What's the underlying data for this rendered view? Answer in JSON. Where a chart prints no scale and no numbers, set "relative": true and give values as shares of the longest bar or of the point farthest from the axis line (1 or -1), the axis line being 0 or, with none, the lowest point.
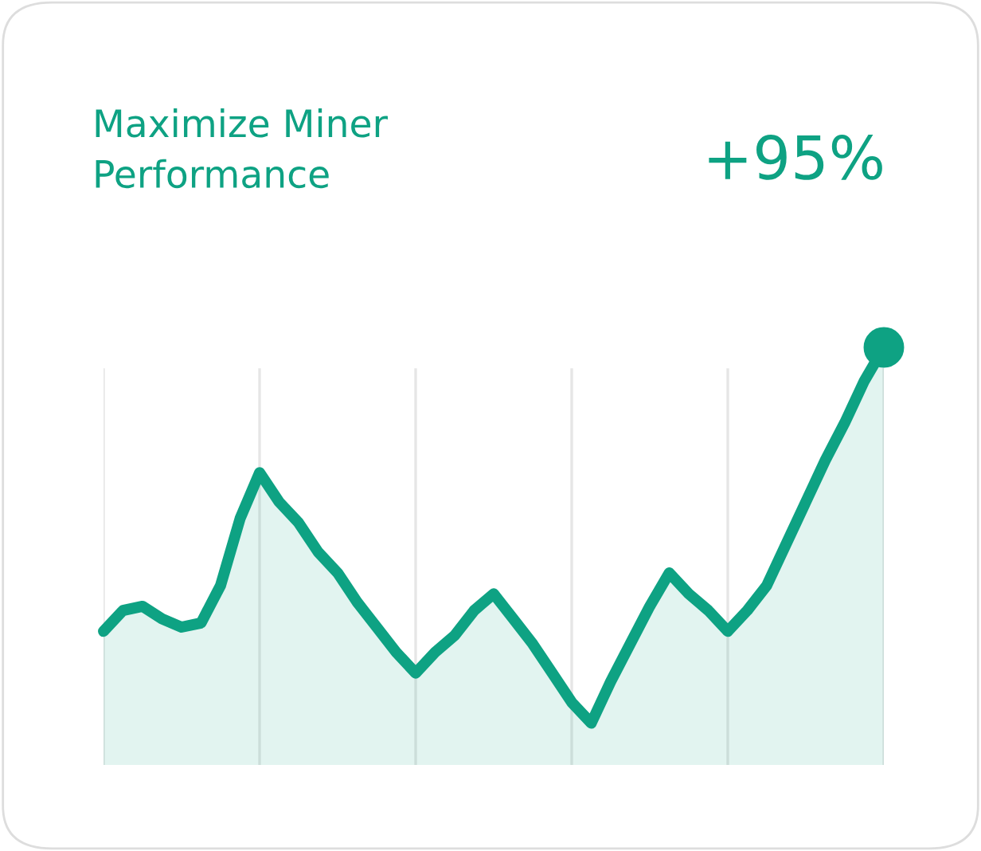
{
  "chart_data": {
    "type": "area",
    "title": "Maximize Miner\nPerformance",
    "annotations": [
      "+95%"
    ],
    "relative": true,
    "categories": [
      null,
      null,
      null,
      null,
      null,
      null,
      null,
      null,
      null,
      null,
      null,
      null,
      null,
      null,
      null,
      null,
      null,
      null,
      null,
      null,
      null,
      null,
      null,
      null,
      null,
      null,
      null,
      null,
      null,
      null,
      null,
      null,
      null,
      null,
      null,
      null,
      null,
      null,
      null,
      null,
      null
    ],
    "grid": "x",
    "series": [
      {
        "color": "#0ea283",
        "values": [
          0.32,
          0.37,
          0.38,
          0.35,
          0.33,
          0.34,
          0.43,
          0.59,
          0.7,
          0.63,
          0.58,
          0.51,
          0.46,
          0.39,
          0.33,
          0.27,
          0.22,
          0.27,
          0.31,
          0.37,
          0.41,
          0.35,
          0.29,
          0.22,
          0.15,
          0.1,
          0.2,
          0.29,
          0.38,
          0.46,
          0.41,
          0.37,
          0.32,
          0.37,
          0.43,
          0.53,
          0.63,
          0.73,
          0.82,
          0.92,
          1
        ]
      }
    ]
  }
}
